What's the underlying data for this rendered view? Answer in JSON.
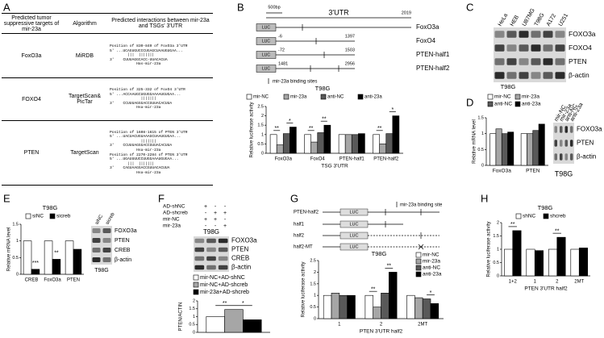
{
  "panel_labels": [
    "A",
    "B",
    "C",
    "D",
    "E",
    "F",
    "G",
    "H"
  ],
  "table": {
    "headers": [
      "Predicted tumor suppressive targets of mir-23a",
      "Algorithm",
      "Predicted interactions between mir-23a and TSGs' 3'UTR"
    ],
    "rows": [
      [
        "FoxO3a",
        "MiRDB",
        [
          "Position of 830-840 of FoxO3a 3'UTR",
          "5' ...UCAGUGUCCCUGAGCUAAUGUGAA...",
          "        |||  |||||||",
          "3'    CUUUAGGCACC-UUACACUA",
          "            Has-mir-23a"
        ]
      ],
      [
        "FOXO4",
        "TargetScan& PicTar",
        [
          "Position of 325-332 of FoxO4 3'UTR",
          "5' ...ACCAAUGCUGUGGAAAAUGUGAA...",
          "              |||||||",
          "3'    CCUUUAGGGACCGUUACACUUA",
          "            Hsa-mir-23a"
        ]
      ],
      [
        "PTEN",
        "TargetScan",
        [
          "Position of 1608-1615 of PTEN 3'UTR",
          "5' ...UACUACUGUAAAGCUAAUGUGAA...",
          "              |||||||",
          "3'    CCUUUAGGGACCGUUACACUUA",
          "            Hsa-mir-23a",
          "Position of 2270-2284 of PTEN 3'UTR",
          "5' ...UGAUUUUCCUUGGAAAUGUGAA...",
          "        |||  |||||||",
          "3'    CAGUAAGGACCGUUACACUUA",
          "            Hsa-mir-23a"
        ]
      ]
    ]
  },
  "utr_diagram": {
    "scale": "500bp",
    "region": "3'UTR",
    "length": 2019,
    "luc": "LUC",
    "legend": "mir-23a binding sites",
    "constructs": [
      {
        "name": "FoxO3a"
      },
      {
        "name": "FoxO4",
        "start": -6,
        "end": 1397
      },
      {
        "name": "PTEN-half1",
        "start": -72,
        "end": 1503
      },
      {
        "name": "PTEN-half2",
        "start": 1481,
        "end": 2956
      }
    ]
  },
  "reporter_diagram": {
    "legend": "mir-23a binding site",
    "luc": "LUC",
    "constructs": [
      "PTEN-half2",
      "half1",
      "half2",
      "half2-MT"
    ]
  },
  "blots": {
    "C": {
      "lanes": [
        "HeLa",
        "HEB",
        "U87MG",
        "T98G",
        "A172",
        "U251"
      ],
      "proteins": [
        "FOXO3a",
        "FOXO4",
        "PTEN",
        "β-actin"
      ]
    },
    "D": {
      "lanes": [
        "mir-NC",
        "mir-23a",
        "anti-NC",
        "anti-23a"
      ],
      "proteins": [
        "FOXO3a",
        "PTEN",
        "β-actin"
      ],
      "cell_line": "T98G"
    },
    "E": {
      "lanes": [
        "siNC",
        "sicreb"
      ],
      "proteins": [
        "FOXO3a",
        "PTEN",
        "CREB",
        "β-actin"
      ],
      "cell_line": "T98G"
    },
    "F": {
      "proteins": [
        "FOXO3a",
        "PTEN",
        "CREB",
        "β-actin"
      ],
      "cell_line": "T98G"
    }
  },
  "treatments": [
    {
      "label": "AD-shNC",
      "signs": [
        "+",
        "-",
        "-"
      ]
    },
    {
      "label": "AD-shcreb",
      "signs": [
        "-",
        "+",
        "+"
      ]
    },
    {
      "label": "mir-NC",
      "signs": [
        "+",
        "+",
        "-"
      ]
    },
    {
      "label": "mir-23a",
      "signs": [
        "-",
        "-",
        "+"
      ]
    }
  ],
  "chart_data": [
    {
      "type": "bar",
      "title": "T98G",
      "y_label": "Relative luciferase activity",
      "x_label": "TSG 3'UTR",
      "categories": [
        "FoxO3a",
        "FoxO4",
        "PTEN-half1",
        "PTEN-half2"
      ],
      "series": [
        {
          "name": "mir-NC",
          "color": "#ffffff",
          "values": [
            1,
            1,
            1,
            1
          ]
        },
        {
          "name": "mir-23a",
          "color": "#a6a6a6",
          "values": [
            0.45,
            0.6,
            1,
            0.5
          ]
        },
        {
          "name": "anti-NC",
          "color": "#595959",
          "values": [
            1.05,
            1.1,
            1,
            1.05
          ]
        },
        {
          "name": "anti-23a",
          "color": "#000000",
          "values": [
            1.4,
            1.5,
            1.05,
            2
          ]
        }
      ],
      "ylim": [
        0,
        2.5
      ],
      "yticks": [
        0,
        0.5,
        1,
        1.5,
        2,
        2.5
      ],
      "annotations": [
        "**",
        "*",
        "**",
        "**",
        "**",
        "*"
      ]
    },
    {
      "type": "bar",
      "title": "T98G",
      "y_label": "Relative mRNA level",
      "categories": [
        "FoxO3a",
        "PTEN"
      ],
      "series": [
        {
          "name": "mir-NC",
          "color": "#ffffff",
          "values": [
            1,
            1
          ]
        },
        {
          "name": "mir-23a",
          "color": "#a6a6a6",
          "values": [
            1.15,
            1
          ]
        },
        {
          "name": "anti-NC",
          "color": "#595959",
          "values": [
            1,
            1.1
          ]
        },
        {
          "name": "anti-23a",
          "color": "#000000",
          "values": [
            1.05,
            1.3
          ]
        }
      ],
      "ylim": [
        0,
        1.5
      ],
      "yticks": [
        0,
        0.5,
        1,
        1.5
      ]
    },
    {
      "type": "bar",
      "title": "T98G",
      "y_label": "Relative mRNA level",
      "categories": [
        "CREB",
        "FoxO3a",
        "PTEN"
      ],
      "series": [
        {
          "name": "siNC",
          "color": "#ffffff",
          "values": [
            1,
            1,
            1
          ]
        },
        {
          "name": "sicreb",
          "color": "#000000",
          "values": [
            0.15,
            0.45,
            0.75
          ]
        }
      ],
      "ylim": [
        0,
        1.5
      ],
      "yticks": [
        0,
        0.5,
        1,
        1.5
      ],
      "annotations": [
        "***",
        "**"
      ]
    },
    {
      "type": "bar",
      "y_label": "PTEN/ACTIN",
      "categories": [
        null
      ],
      "series": [
        {
          "name": "mir-NC+AD-shNC",
          "color": "#ffffff",
          "values": [
            1
          ]
        },
        {
          "name": "mir-NC+AD-shcreb",
          "color": "#a6a6a6",
          "values": [
            1.45
          ]
        },
        {
          "name": "mir-23a+AD-shcreb",
          "color": "#000000",
          "values": [
            0.8
          ]
        }
      ],
      "ylim": [
        0,
        2
      ],
      "yticks": [
        0,
        0.5,
        1,
        1.5,
        2
      ],
      "annotations": [
        "**",
        "*"
      ]
    },
    {
      "type": "bar",
      "title": "T98G",
      "y_label": "Relative luciferase activity",
      "x_label": "PTEN 3'UTR half2",
      "categories": [
        "1",
        "2",
        "2MT"
      ],
      "series": [
        {
          "name": "mir-NC",
          "color": "#ffffff",
          "values": [
            1,
            1,
            1
          ]
        },
        {
          "name": "mir-23a",
          "color": "#a6a6a6",
          "values": [
            1.1,
            0.5,
            0.9
          ]
        },
        {
          "name": "anti-NC",
          "color": "#595959",
          "values": [
            1,
            1.1,
            0.85
          ]
        },
        {
          "name": "anti-23a",
          "color": "#000000",
          "values": [
            1,
            2,
            0.65
          ]
        }
      ],
      "ylim": [
        0,
        2.5
      ],
      "yticks": [
        0,
        0.5,
        1,
        1.5,
        2,
        2.5
      ],
      "annotations": [
        "**",
        "**",
        "*"
      ]
    },
    {
      "type": "bar",
      "title": "T98G",
      "y_label": "Relative luciferase activity",
      "x_label": "PTEN 3'UTR half2",
      "categories": [
        "1+2",
        "1",
        "2",
        "2MT"
      ],
      "series": [
        {
          "name": "shNC",
          "color": "#ffffff",
          "values": [
            1,
            1,
            1,
            1
          ]
        },
        {
          "name": "shcreb",
          "color": "#000000",
          "values": [
            1.7,
            0.95,
            1.45,
            1.05
          ]
        }
      ],
      "ylim": [
        0,
        2
      ],
      "yticks": [
        0,
        0.5,
        1,
        1.5,
        2
      ],
      "annotations": [
        "**",
        "**"
      ]
    }
  ]
}
